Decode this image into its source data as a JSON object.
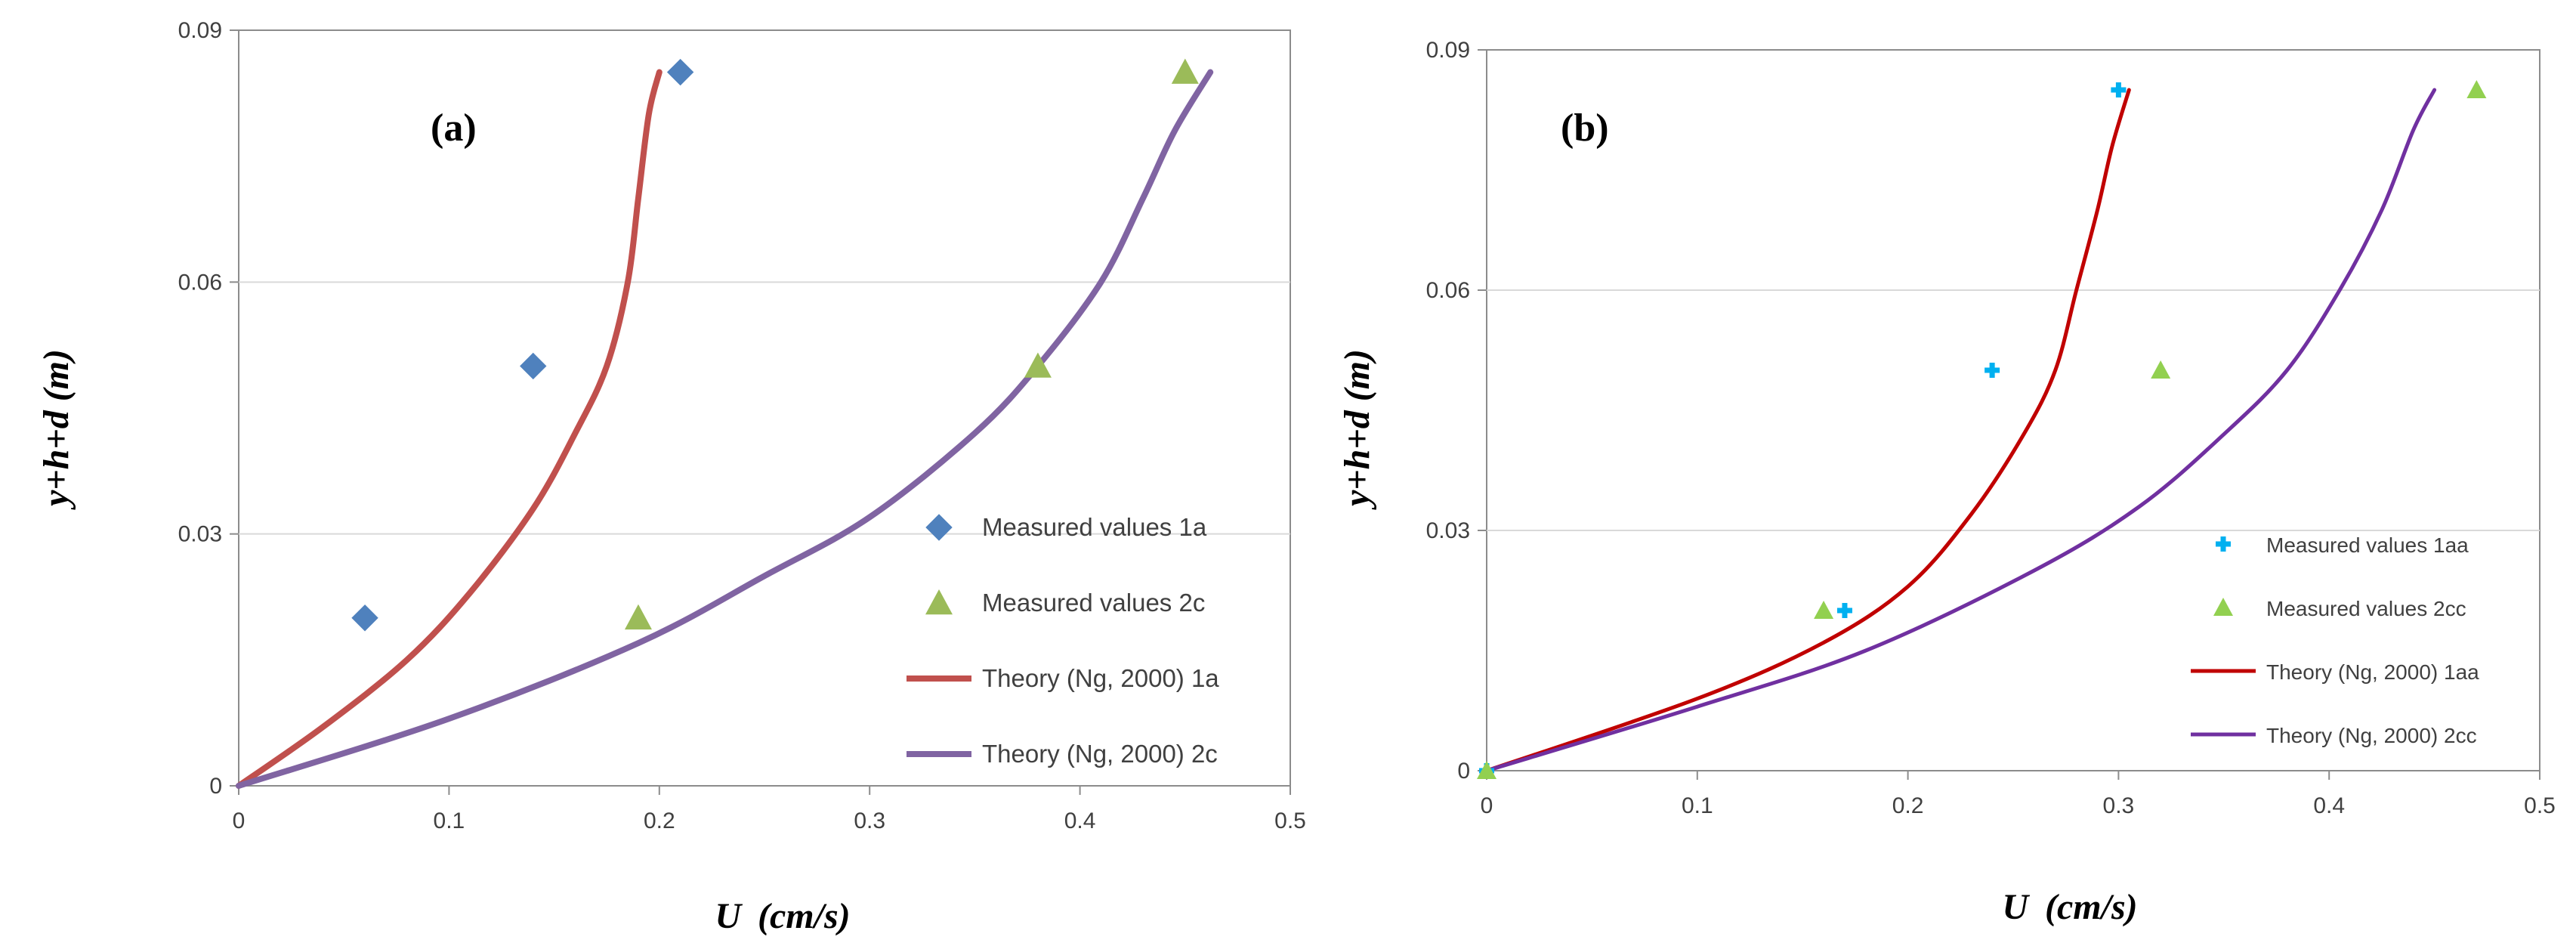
{
  "chart_data": [
    {
      "type": "line",
      "panel_label": "(a)",
      "xlabel_var": "U",
      "xlabel_unit": "(cm/s)",
      "ylabel": "y+h+d (m)",
      "xlim": [
        0,
        0.5
      ],
      "ylim": [
        0,
        0.09
      ],
      "x_ticks": [
        "0",
        "0.1",
        "0.2",
        "0.3",
        "0.4",
        "0.5"
      ],
      "y_ticks": [
        "0",
        "0.03",
        "0.06",
        "0.09"
      ],
      "legend_position": "bottom-right",
      "series": [
        {
          "name": "Measured values 1a",
          "kind": "scatter",
          "marker": "diamond",
          "color": "#4f81bd",
          "points": [
            [
              0.06,
              0.02
            ],
            [
              0.14,
              0.05
            ],
            [
              0.21,
              0.085
            ]
          ]
        },
        {
          "name": "Measured values 2c",
          "kind": "scatter",
          "marker": "triangle",
          "color": "#9bbb59",
          "points": [
            [
              0.19,
              0.02
            ],
            [
              0.38,
              0.05
            ],
            [
              0.45,
              0.085
            ]
          ]
        },
        {
          "name": "Theory (Ng, 2000) 1a",
          "kind": "line",
          "color": "#c0504d",
          "points": [
            [
              0,
              0
            ],
            [
              0.04,
              0.007
            ],
            [
              0.08,
              0.015
            ],
            [
              0.11,
              0.023
            ],
            [
              0.14,
              0.033
            ],
            [
              0.16,
              0.042
            ],
            [
              0.175,
              0.05
            ],
            [
              0.185,
              0.06
            ],
            [
              0.19,
              0.07
            ],
            [
              0.195,
              0.08
            ],
            [
              0.2,
              0.085
            ]
          ]
        },
        {
          "name": "Theory (Ng, 2000) 2c",
          "kind": "line",
          "color": "#8064a2",
          "points": [
            [
              0,
              0
            ],
            [
              0.1,
              0.008
            ],
            [
              0.19,
              0.017
            ],
            [
              0.25,
              0.025
            ],
            [
              0.3,
              0.032
            ],
            [
              0.35,
              0.042
            ],
            [
              0.38,
              0.05
            ],
            [
              0.41,
              0.06
            ],
            [
              0.43,
              0.07
            ],
            [
              0.445,
              0.078
            ],
            [
              0.462,
              0.085
            ]
          ]
        }
      ]
    },
    {
      "type": "line",
      "panel_label": "(b)",
      "xlabel_var": "U",
      "xlabel_unit": "(cm/s)",
      "ylabel": "y+h+d (m)",
      "xlim": [
        0,
        0.5
      ],
      "ylim": [
        0,
        0.09
      ],
      "x_ticks": [
        "0",
        "0.1",
        "0.2",
        "0.3",
        "0.4",
        "0.5"
      ],
      "y_ticks": [
        "0",
        "0.03",
        "0.06",
        "0.09"
      ],
      "legend_position": "bottom-right",
      "series": [
        {
          "name": "Measured values 1aa",
          "kind": "scatter",
          "marker": "plus",
          "color": "#00b0f0",
          "points": [
            [
              0,
              0
            ],
            [
              0.17,
              0.02
            ],
            [
              0.24,
              0.05
            ],
            [
              0.3,
              0.085
            ]
          ]
        },
        {
          "name": "Measured values 2cc",
          "kind": "scatter",
          "marker": "triangle",
          "color": "#92d050",
          "points": [
            [
              0,
              0
            ],
            [
              0.16,
              0.02
            ],
            [
              0.32,
              0.05
            ],
            [
              0.47,
              0.085
            ]
          ]
        },
        {
          "name": "Theory (Ng, 2000) 1aa",
          "kind": "line",
          "color": "#c00000",
          "points": [
            [
              0,
              0
            ],
            [
              0.1,
              0.009
            ],
            [
              0.16,
              0.016
            ],
            [
              0.2,
              0.023
            ],
            [
              0.23,
              0.032
            ],
            [
              0.255,
              0.042
            ],
            [
              0.27,
              0.05
            ],
            [
              0.28,
              0.06
            ],
            [
              0.29,
              0.07
            ],
            [
              0.297,
              0.078
            ],
            [
              0.305,
              0.085
            ]
          ]
        },
        {
          "name": "Theory (Ng, 2000) 2cc",
          "kind": "line",
          "color": "#7030a0",
          "points": [
            [
              0,
              0
            ],
            [
              0.1,
              0.008
            ],
            [
              0.18,
              0.015
            ],
            [
              0.26,
              0.025
            ],
            [
              0.31,
              0.033
            ],
            [
              0.35,
              0.042
            ],
            [
              0.38,
              0.05
            ],
            [
              0.405,
              0.06
            ],
            [
              0.425,
              0.07
            ],
            [
              0.44,
              0.08
            ],
            [
              0.45,
              0.085
            ]
          ]
        }
      ]
    }
  ]
}
